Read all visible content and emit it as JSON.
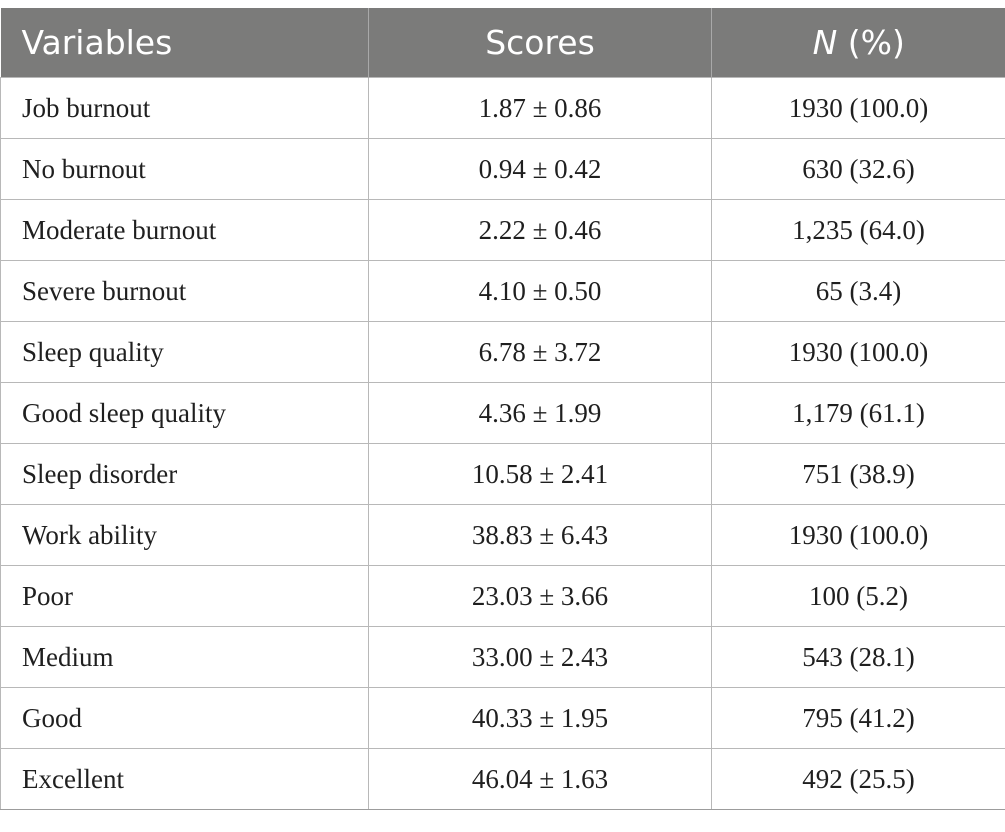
{
  "table": {
    "headers": {
      "variables": "Variables",
      "scores": "Scores",
      "n_italic": "N",
      "n_rest": " (%)"
    },
    "rows": [
      {
        "variable": "Job burnout",
        "score": "1.87 ± 0.86",
        "n": "1930 (100.0)"
      },
      {
        "variable": "No burnout",
        "score": "0.94 ± 0.42",
        "n": "630 (32.6)"
      },
      {
        "variable": "Moderate burnout",
        "score": "2.22 ± 0.46",
        "n": "1,235 (64.0)"
      },
      {
        "variable": "Severe burnout",
        "score": "4.10 ± 0.50",
        "n": "65 (3.4)"
      },
      {
        "variable": "Sleep quality",
        "score": "6.78 ± 3.72",
        "n": "1930 (100.0)"
      },
      {
        "variable": "Good sleep quality",
        "score": "4.36 ± 1.99",
        "n": "1,179 (61.1)"
      },
      {
        "variable": "Sleep disorder",
        "score": "10.58 ± 2.41",
        "n": "751 (38.9)"
      },
      {
        "variable": "Work ability",
        "score": "38.83 ± 6.43",
        "n": "1930 (100.0)"
      },
      {
        "variable": "Poor",
        "score": "23.03 ± 3.66",
        "n": "100 (5.2)"
      },
      {
        "variable": "Medium",
        "score": "33.00 ± 2.43",
        "n": "543 (28.1)"
      },
      {
        "variable": "Good",
        "score": "40.33 ± 1.95",
        "n": "795 (41.2)"
      },
      {
        "variable": "Excellent",
        "score": "46.04 ± 1.63",
        "n": "492 (25.5)"
      }
    ]
  }
}
